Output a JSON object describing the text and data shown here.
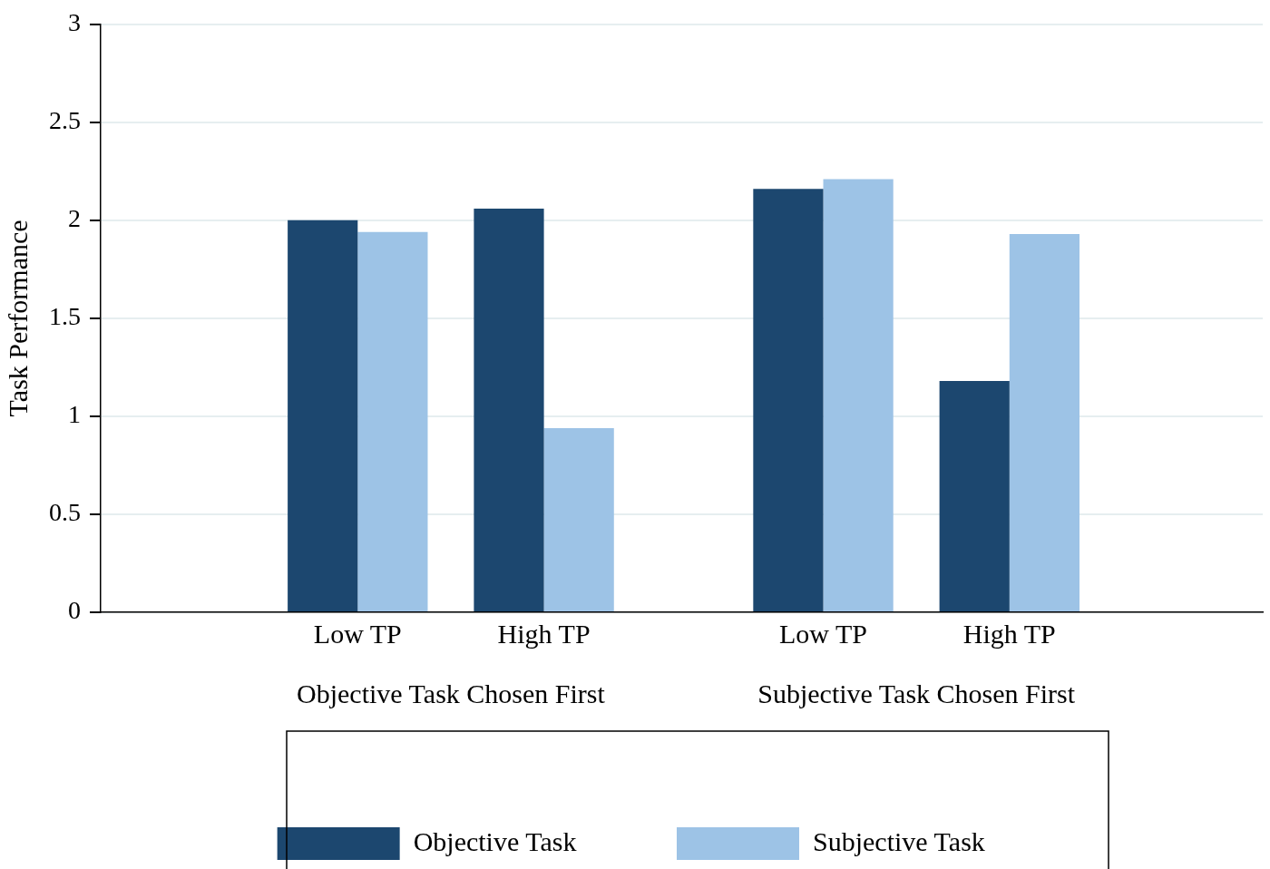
{
  "chart_data": {
    "type": "bar",
    "ylabel": "Task Performance",
    "categories": [
      "Low TP",
      "High TP",
      "Low TP",
      "High TP"
    ],
    "series": [
      {
        "name": "Objective Task",
        "color": "#1c476f",
        "values": [
          2.0,
          2.06,
          2.16,
          1.18
        ]
      },
      {
        "name": "Subjective Task",
        "color": "#9dc3e6",
        "values": [
          1.94,
          0.94,
          2.21,
          1.93
        ]
      }
    ],
    "annotations": [
      "Objective Task Chosen First",
      "Subjective Task Chosen First"
    ],
    "ylim": [
      0,
      3
    ],
    "yticks": [
      0,
      0.5,
      1,
      1.5,
      2,
      2.5,
      3
    ],
    "grid": "y",
    "legend": "bottom"
  }
}
